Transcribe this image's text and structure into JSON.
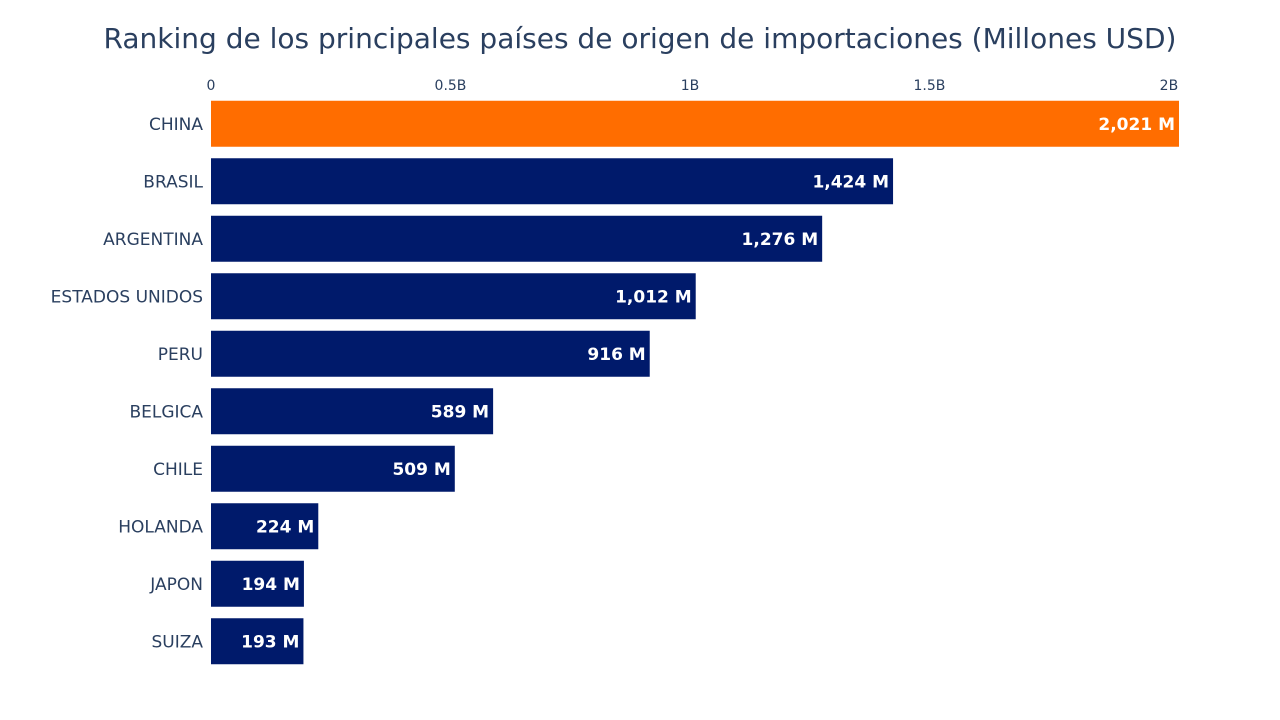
{
  "chart_data": {
    "type": "bar",
    "orientation": "horizontal",
    "title": "Ranking de los principales países de origen de importaciones (Millones USD)",
    "xlabel": "",
    "ylabel": "",
    "categories": [
      "CHINA",
      "BRASIL",
      "ARGENTINA",
      "ESTADOS UNIDOS",
      "PERU",
      "BELGICA",
      "CHILE",
      "HOLANDA",
      "JAPON",
      "SUIZA"
    ],
    "values": [
      2021,
      1424,
      1276,
      1012,
      916,
      589,
      509,
      224,
      194,
      193
    ],
    "value_unit": "millones USD",
    "data_labels": [
      "2,021 M",
      "1,424 M",
      "1,276 M",
      "1,012 M",
      "916 M",
      "589 M",
      "509 M",
      "224 M",
      "194 M",
      "193 M"
    ],
    "xlim": [
      0,
      2021
    ],
    "x_ticks": [
      0,
      500,
      1000,
      1500,
      2000
    ],
    "x_tick_labels": [
      "0",
      "0.5B",
      "1B",
      "1.5B",
      "2B"
    ],
    "x_axis_position": "top",
    "grid": false,
    "legend": "none",
    "colors": {
      "highlight": "#ff6d00",
      "default": "#001a6b"
    },
    "highlight_category": "CHINA"
  }
}
